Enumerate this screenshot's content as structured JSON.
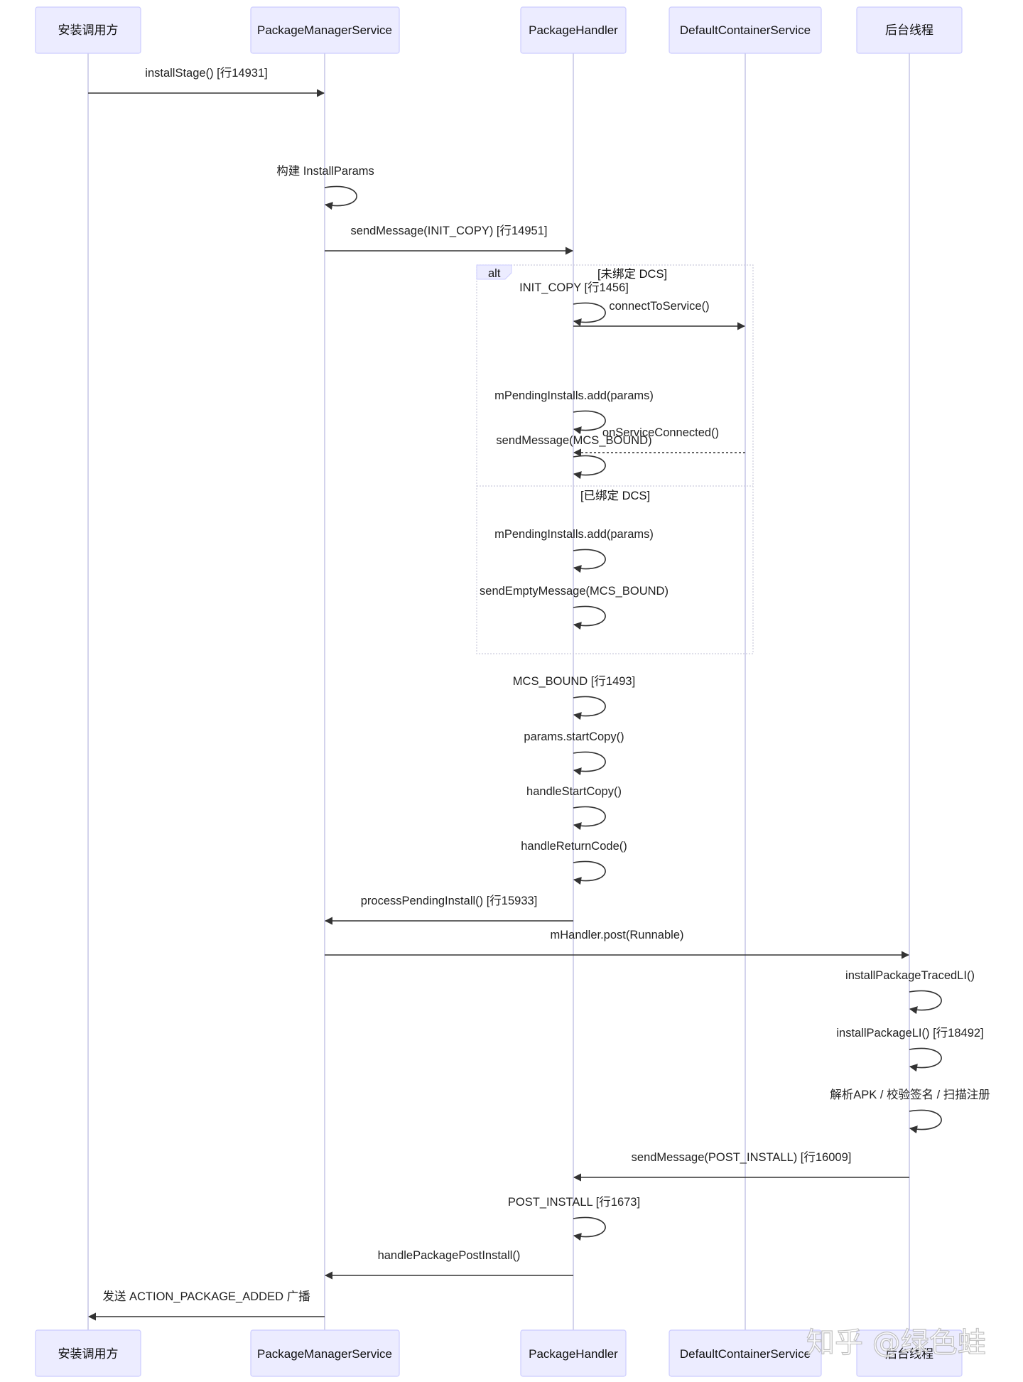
{
  "participants": [
    {
      "id": "caller",
      "label": "安装调用方"
    },
    {
      "id": "pms",
      "label": "PackageManagerService"
    },
    {
      "id": "ph",
      "label": "PackageHandler"
    },
    {
      "id": "dcs",
      "label": "DefaultContainerService"
    },
    {
      "id": "bg",
      "label": "后台线程"
    }
  ],
  "messages": [
    {
      "from": "caller",
      "to": "pms",
      "label": "installStage() [行14931]",
      "style": "solid"
    },
    {
      "from": "pms",
      "to": "pms",
      "label": "构建 InstallParams",
      "style": "solid"
    },
    {
      "from": "pms",
      "to": "ph",
      "label": "sendMessage(INIT_COPY) [行14951]",
      "style": "solid"
    },
    {
      "from": "ph",
      "to": "ph",
      "label": "INIT_COPY [行1456]",
      "style": "solid"
    },
    {
      "from": "ph",
      "to": "dcs",
      "label": "connectToService()",
      "style": "solid"
    },
    {
      "from": "ph",
      "to": "ph",
      "label": "mPendingInstalls.add(params)",
      "style": "solid"
    },
    {
      "from": "dcs",
      "to": "ph",
      "label": "onServiceConnected()",
      "style": "dotted"
    },
    {
      "from": "ph",
      "to": "ph",
      "label": "sendMessage(MCS_BOUND)",
      "style": "solid"
    },
    {
      "from": "ph",
      "to": "ph",
      "label": "mPendingInstalls.add(params)",
      "style": "solid"
    },
    {
      "from": "ph",
      "to": "ph",
      "label": "sendEmptyMessage(MCS_BOUND)",
      "style": "solid"
    },
    {
      "from": "ph",
      "to": "ph",
      "label": "MCS_BOUND [行1493]",
      "style": "solid"
    },
    {
      "from": "ph",
      "to": "ph",
      "label": "params.startCopy()",
      "style": "solid"
    },
    {
      "from": "ph",
      "to": "ph",
      "label": "handleStartCopy()",
      "style": "solid"
    },
    {
      "from": "ph",
      "to": "ph",
      "label": "handleReturnCode()",
      "style": "solid"
    },
    {
      "from": "ph",
      "to": "pms",
      "label": "processPendingInstall() [行15933]",
      "style": "solid"
    },
    {
      "from": "pms",
      "to": "bg",
      "label": "mHandler.post(Runnable)",
      "style": "solid"
    },
    {
      "from": "bg",
      "to": "bg",
      "label": "installPackageTracedLI()",
      "style": "solid"
    },
    {
      "from": "bg",
      "to": "bg",
      "label": "installPackageLI() [行18492]",
      "style": "solid"
    },
    {
      "from": "bg",
      "to": "bg",
      "label": "解析APK / 校验签名 / 扫描注册",
      "style": "solid"
    },
    {
      "from": "bg",
      "to": "ph",
      "label": "sendMessage(POST_INSTALL) [行16009]",
      "style": "solid"
    },
    {
      "from": "ph",
      "to": "ph",
      "label": "POST_INSTALL [行1673]",
      "style": "solid"
    },
    {
      "from": "ph",
      "to": "pms",
      "label": "handlePackagePostInstall()",
      "style": "solid"
    },
    {
      "from": "pms",
      "to": "caller",
      "label": "发送 ACTION_PACKAGE_ADDED 广播",
      "style": "solid"
    }
  ],
  "alt_frame": {
    "keyword": "alt",
    "sections": [
      {
        "condition": "[未绑定 DCS]"
      },
      {
        "condition": "[已绑定 DCS]"
      }
    ]
  },
  "watermark": "知乎 @绿色蛙",
  "colors": {
    "actor_fill": "#ECECFF",
    "actor_border": "#CCCCFF",
    "lifeline": "#C8C8E8",
    "arrow": "#333333"
  }
}
